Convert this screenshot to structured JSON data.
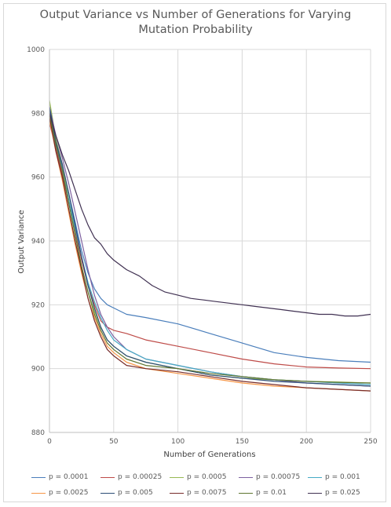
{
  "chart_data": {
    "type": "line",
    "title": "Output Variance vs Number of Generations for Varying Mutation Probability",
    "title_lines": [
      "Output Variance vs Number of Generations for Varying",
      "Mutation Probability"
    ],
    "xlabel": "Number of Generations",
    "ylabel": "Output Variance",
    "xlim": [
      0,
      250
    ],
    "ylim": [
      880,
      1000
    ],
    "xticks": [
      0,
      50,
      100,
      150,
      200,
      250
    ],
    "yticks": [
      880,
      900,
      920,
      940,
      960,
      980,
      1000
    ],
    "grid": true,
    "legend_position": "bottom",
    "series": [
      {
        "name": "p = 0.0001",
        "color": "#4a7ebb",
        "points": [
          [
            0,
            981
          ],
          [
            5,
            971
          ],
          [
            10,
            963
          ],
          [
            15,
            955
          ],
          [
            20,
            946
          ],
          [
            25,
            937
          ],
          [
            30,
            930
          ],
          [
            35,
            925
          ],
          [
            40,
            922
          ],
          [
            45,
            920
          ],
          [
            50,
            919
          ],
          [
            60,
            917
          ],
          [
            75,
            916
          ],
          [
            100,
            914
          ],
          [
            125,
            911
          ],
          [
            150,
            908
          ],
          [
            175,
            905
          ],
          [
            200,
            903.5
          ],
          [
            225,
            902.5
          ],
          [
            250,
            902
          ]
        ]
      },
      {
        "name": "p = 0.00025",
        "color": "#be4b48",
        "points": [
          [
            0,
            977
          ],
          [
            5,
            969
          ],
          [
            10,
            961
          ],
          [
            15,
            952
          ],
          [
            20,
            943
          ],
          [
            25,
            934
          ],
          [
            30,
            926
          ],
          [
            35,
            920
          ],
          [
            40,
            915
          ],
          [
            45,
            913
          ],
          [
            50,
            912
          ],
          [
            60,
            911
          ],
          [
            75,
            909
          ],
          [
            100,
            907
          ],
          [
            125,
            905
          ],
          [
            150,
            903
          ],
          [
            175,
            901.5
          ],
          [
            200,
            900.5
          ],
          [
            225,
            900.2
          ],
          [
            250,
            900
          ]
        ]
      },
      {
        "name": "p = 0.0005",
        "color": "#98b954",
        "points": [
          [
            0,
            984
          ],
          [
            5,
            972
          ],
          [
            10,
            964
          ],
          [
            15,
            953
          ],
          [
            20,
            942
          ],
          [
            25,
            932
          ],
          [
            30,
            924
          ],
          [
            35,
            918
          ],
          [
            40,
            913
          ],
          [
            45,
            909
          ],
          [
            50,
            907
          ],
          [
            60,
            904
          ],
          [
            75,
            902
          ],
          [
            100,
            900
          ],
          [
            125,
            898
          ],
          [
            150,
            897
          ],
          [
            175,
            896.5
          ],
          [
            200,
            896
          ],
          [
            225,
            895.8
          ],
          [
            250,
            895.5
          ]
        ]
      },
      {
        "name": "p = 0.00075",
        "color": "#7d60a0",
        "points": [
          [
            0,
            982
          ],
          [
            5,
            973
          ],
          [
            10,
            966
          ],
          [
            15,
            958
          ],
          [
            20,
            949
          ],
          [
            25,
            940
          ],
          [
            30,
            931
          ],
          [
            35,
            923
          ],
          [
            40,
            917
          ],
          [
            45,
            913
          ],
          [
            50,
            910
          ],
          [
            60,
            906
          ],
          [
            75,
            903
          ],
          [
            100,
            901
          ],
          [
            125,
            899
          ],
          [
            150,
            897.5
          ],
          [
            175,
            896.5
          ],
          [
            200,
            895.5
          ],
          [
            225,
            895
          ],
          [
            250,
            894.5
          ]
        ]
      },
      {
        "name": "p = 0.001",
        "color": "#46aac5",
        "points": [
          [
            0,
            980
          ],
          [
            5,
            970
          ],
          [
            10,
            962
          ],
          [
            15,
            953
          ],
          [
            20,
            944
          ],
          [
            25,
            935
          ],
          [
            30,
            927
          ],
          [
            35,
            921
          ],
          [
            40,
            916
          ],
          [
            45,
            912
          ],
          [
            50,
            909
          ],
          [
            60,
            906
          ],
          [
            75,
            903
          ],
          [
            100,
            901
          ],
          [
            125,
            899
          ],
          [
            150,
            897.5
          ],
          [
            175,
            896.5
          ],
          [
            200,
            896
          ],
          [
            225,
            895.5
          ],
          [
            250,
            895
          ]
        ]
      },
      {
        "name": "p = 0.0025",
        "color": "#f79646",
        "points": [
          [
            0,
            978
          ],
          [
            5,
            968
          ],
          [
            10,
            959
          ],
          [
            15,
            949
          ],
          [
            20,
            939
          ],
          [
            25,
            930
          ],
          [
            30,
            922
          ],
          [
            35,
            916
          ],
          [
            40,
            911
          ],
          [
            45,
            907
          ],
          [
            50,
            905
          ],
          [
            60,
            902
          ],
          [
            75,
            900
          ],
          [
            100,
            898.5
          ],
          [
            125,
            897
          ],
          [
            150,
            895.5
          ],
          [
            175,
            894.5
          ],
          [
            200,
            894
          ],
          [
            225,
            893.5
          ],
          [
            250,
            893
          ]
        ]
      },
      {
        "name": "p = 0.005",
        "color": "#2c4d75",
        "points": [
          [
            0,
            982
          ],
          [
            5,
            971
          ],
          [
            10,
            964
          ],
          [
            15,
            955
          ],
          [
            20,
            945
          ],
          [
            25,
            935
          ],
          [
            30,
            926
          ],
          [
            35,
            919
          ],
          [
            40,
            913
          ],
          [
            45,
            909
          ],
          [
            50,
            907
          ],
          [
            60,
            904
          ],
          [
            75,
            902
          ],
          [
            100,
            900
          ],
          [
            125,
            898
          ],
          [
            150,
            897
          ],
          [
            175,
            896
          ],
          [
            200,
            895.5
          ],
          [
            225,
            895
          ],
          [
            250,
            894.5
          ]
        ]
      },
      {
        "name": "p = 0.0075",
        "color": "#772c2a",
        "points": [
          [
            0,
            979
          ],
          [
            5,
            968
          ],
          [
            10,
            960
          ],
          [
            15,
            950
          ],
          [
            20,
            940
          ],
          [
            25,
            931
          ],
          [
            30,
            922
          ],
          [
            35,
            915
          ],
          [
            40,
            910
          ],
          [
            45,
            906
          ],
          [
            50,
            904
          ],
          [
            60,
            901
          ],
          [
            75,
            900
          ],
          [
            100,
            899
          ],
          [
            125,
            897.5
          ],
          [
            150,
            896
          ],
          [
            175,
            895
          ],
          [
            200,
            894
          ],
          [
            225,
            893.5
          ],
          [
            250,
            893
          ]
        ]
      },
      {
        "name": "p = 0.01",
        "color": "#5f7530",
        "points": [
          [
            0,
            980
          ],
          [
            5,
            970
          ],
          [
            10,
            962
          ],
          [
            15,
            952
          ],
          [
            20,
            942
          ],
          [
            25,
            932
          ],
          [
            30,
            924
          ],
          [
            35,
            917
          ],
          [
            40,
            912
          ],
          [
            45,
            908
          ],
          [
            50,
            906
          ],
          [
            60,
            903
          ],
          [
            75,
            901
          ],
          [
            100,
            900
          ],
          [
            125,
            898.5
          ],
          [
            150,
            897.5
          ],
          [
            175,
            896.5
          ],
          [
            200,
            896
          ],
          [
            225,
            895.7
          ],
          [
            250,
            895.5
          ]
        ]
      },
      {
        "name": "p = 0.025",
        "color": "#403152",
        "points": [
          [
            0,
            980
          ],
          [
            5,
            973
          ],
          [
            10,
            967
          ],
          [
            15,
            962
          ],
          [
            20,
            956
          ],
          [
            25,
            950
          ],
          [
            30,
            945
          ],
          [
            35,
            941
          ],
          [
            40,
            939
          ],
          [
            45,
            936
          ],
          [
            50,
            934
          ],
          [
            60,
            931
          ],
          [
            70,
            929
          ],
          [
            80,
            926
          ],
          [
            90,
            924
          ],
          [
            100,
            923
          ],
          [
            110,
            922
          ],
          [
            120,
            921.5
          ],
          [
            130,
            921
          ],
          [
            140,
            920.5
          ],
          [
            150,
            920
          ],
          [
            160,
            919.5
          ],
          [
            170,
            919
          ],
          [
            180,
            918.5
          ],
          [
            190,
            918
          ],
          [
            200,
            917.5
          ],
          [
            210,
            917
          ],
          [
            220,
            917
          ],
          [
            230,
            916.5
          ],
          [
            240,
            916.5
          ],
          [
            250,
            917
          ]
        ]
      }
    ]
  }
}
